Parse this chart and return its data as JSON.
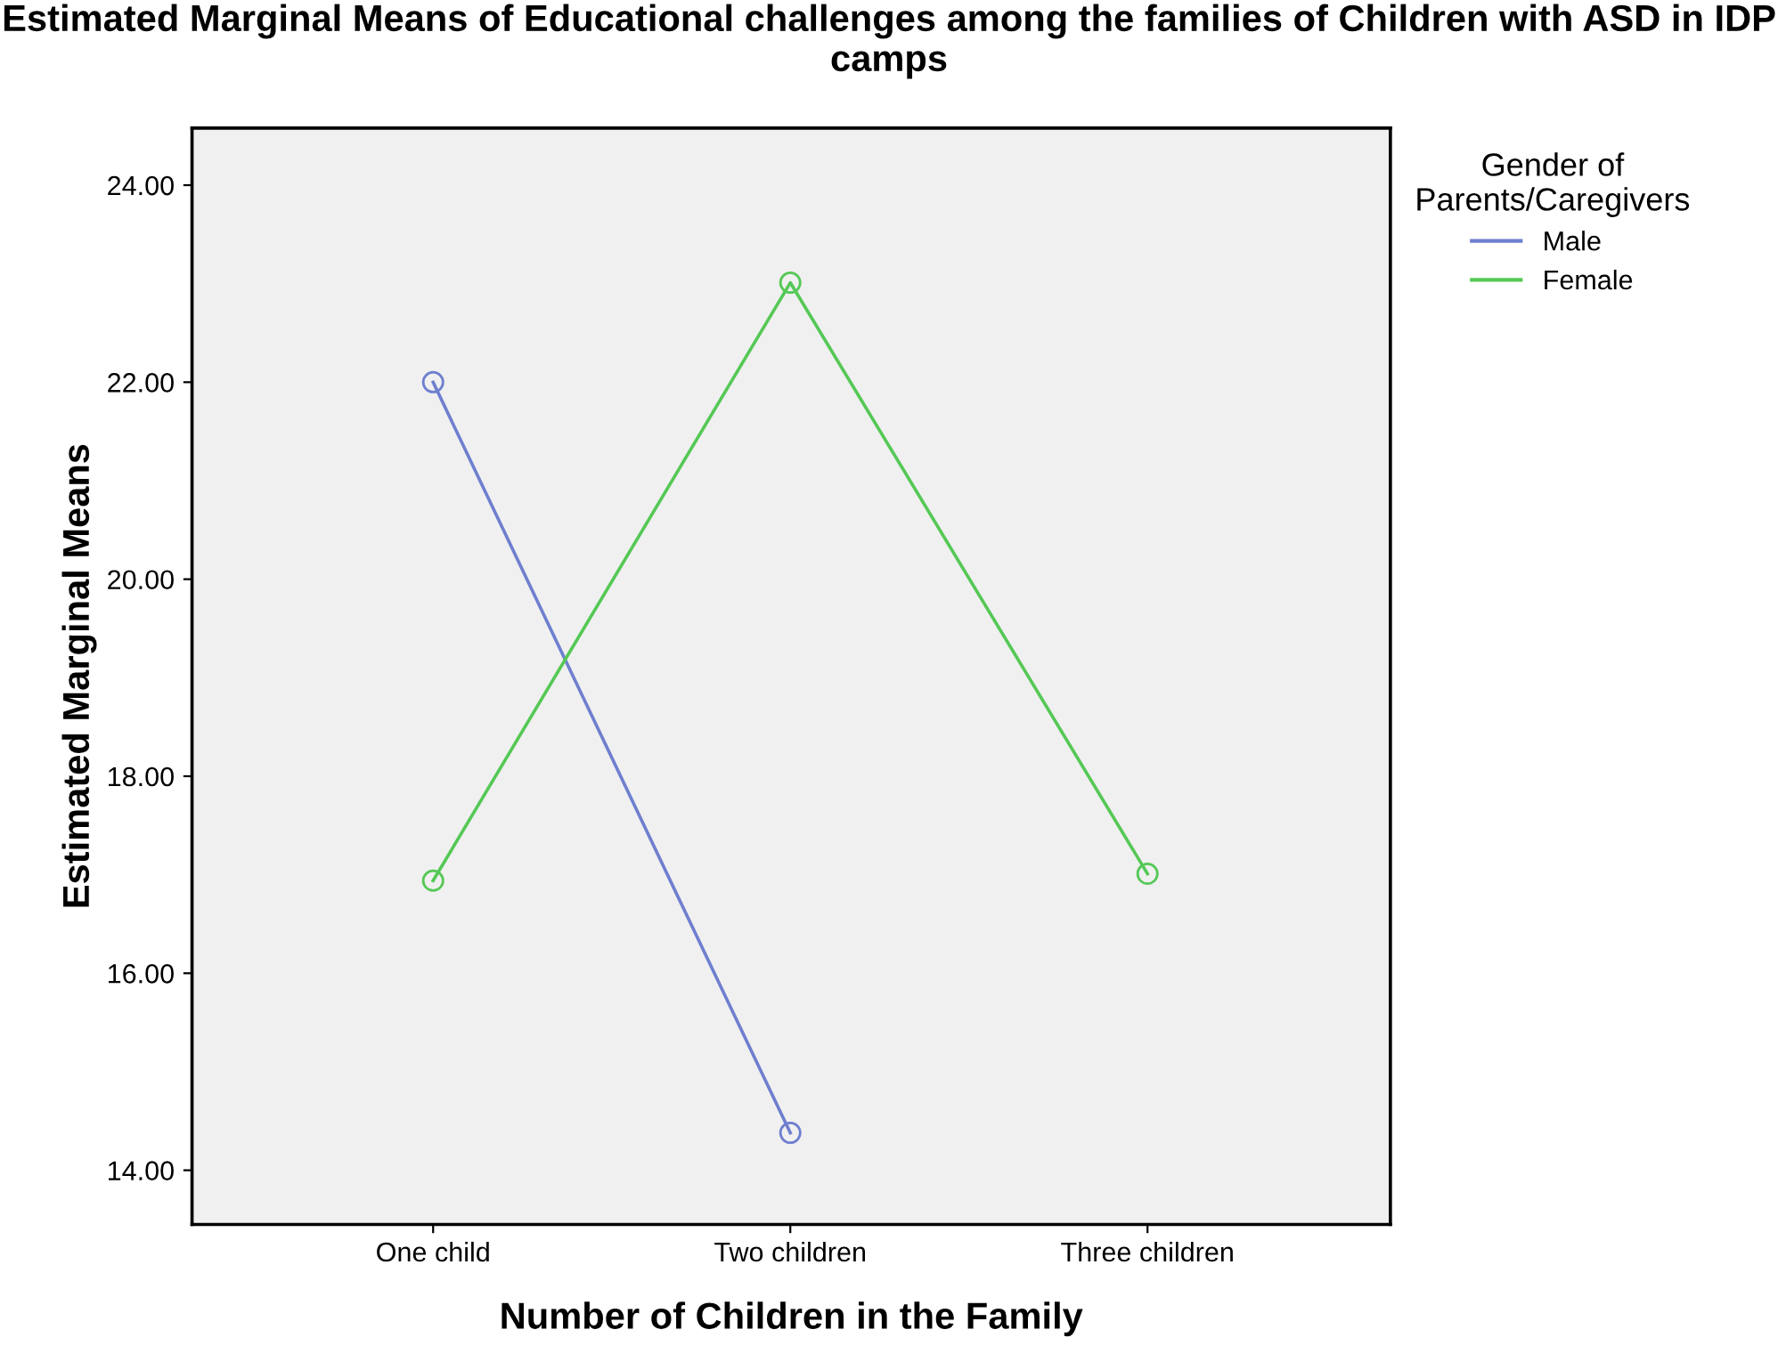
{
  "chart_data": {
    "type": "line",
    "title": "Estimated Marginal Means of Educational challenges among the families of Children with ASD in IDP camps",
    "xlabel": "Number of Children in the Family",
    "ylabel": "Estimated Marginal Means",
    "legend_title": "Gender of\nParents/Caregivers",
    "categories": [
      "One child",
      "Two children",
      "Three children"
    ],
    "series": [
      {
        "name": "Male",
        "color": "#6f7fcf",
        "values": [
          22.0,
          14.38,
          null
        ]
      },
      {
        "name": "Female",
        "color": "#55c855",
        "values": [
          16.94,
          23.01,
          17.01
        ]
      }
    ],
    "ylim": [
      13.45,
      24.58
    ],
    "yticks": [
      {
        "value": 14,
        "label": "14.00"
      },
      {
        "value": 16,
        "label": "16.00"
      },
      {
        "value": 18,
        "label": "18.00"
      },
      {
        "value": 20,
        "label": "20.00"
      },
      {
        "value": 22,
        "label": "22.00"
      },
      {
        "value": 24,
        "label": "24.00"
      }
    ],
    "marker": "circle",
    "line_style": "solid",
    "grid": false,
    "legend": "top right"
  }
}
